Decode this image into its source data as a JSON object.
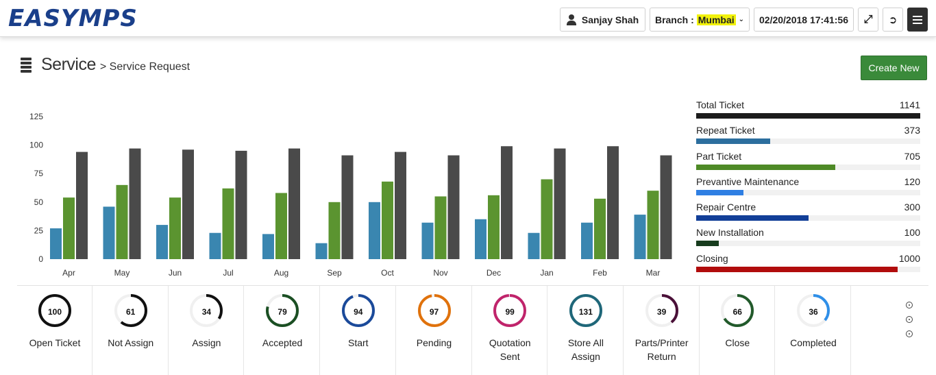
{
  "header": {
    "logo": "EASYMPS",
    "user": "Sanjay Shah",
    "branch_label": "Branch :",
    "branch_value": "Mumbai",
    "datetime": "02/20/2018 17:41:56"
  },
  "page": {
    "title": "Service",
    "breadcrumb": "> Service Request",
    "create_button": "Create New"
  },
  "chart_data": {
    "type": "bar",
    "categories": [
      "Apr",
      "May",
      "Jun",
      "Jul",
      "Aug",
      "Sep",
      "Oct",
      "Nov",
      "Dec",
      "Jan",
      "Feb",
      "Mar"
    ],
    "series": [
      {
        "color": "#3a86b0",
        "values": [
          27,
          46,
          30,
          23,
          22,
          14,
          50,
          32,
          35,
          23,
          32,
          39
        ]
      },
      {
        "color": "#5b9430",
        "values": [
          54,
          65,
          54,
          62,
          58,
          50,
          68,
          55,
          56,
          70,
          53,
          60
        ]
      },
      {
        "color": "#4a4a4a",
        "values": [
          94,
          97,
          96,
          95,
          97,
          91,
          94,
          91,
          99,
          97,
          99,
          91
        ]
      }
    ],
    "yticks": [
      0,
      25,
      50,
      75,
      100,
      125
    ],
    "ylim": [
      0,
      125
    ]
  },
  "tickets": [
    {
      "label": "Total Ticket",
      "value": "1141",
      "pct": 100,
      "color": "#1c1c1c"
    },
    {
      "label": "Repeat Ticket",
      "value": "373",
      "pct": 33,
      "color": "#2c6e9e"
    },
    {
      "label": "Part Ticket",
      "value": "705",
      "pct": 62,
      "color": "#4e8a26"
    },
    {
      "label": "Prevantive Maintenance",
      "value": "120",
      "pct": 21,
      "color": "#2f7fe3"
    },
    {
      "label": "Repair Centre",
      "value": "300",
      "pct": 50,
      "color": "#123f98"
    },
    {
      "label": "New Installation",
      "value": "100",
      "pct": 10,
      "color": "#173c1e"
    },
    {
      "label": "Closing",
      "value": "1000",
      "pct": 90,
      "color": "#b10c0c"
    }
  ],
  "statuses": [
    {
      "label": "Open Ticket",
      "value": "100",
      "pct": 100,
      "color": "#111111"
    },
    {
      "label": "Not Assign",
      "value": "61",
      "pct": 61,
      "color": "#111111"
    },
    {
      "label": "Assign",
      "value": "34",
      "pct": 34,
      "color": "#111111"
    },
    {
      "label": "Accepted",
      "value": "79",
      "pct": 79,
      "color": "#1b4f23"
    },
    {
      "label": "Start",
      "value": "94",
      "pct": 94,
      "color": "#1b4a9a"
    },
    {
      "label": "Pending",
      "value": "97",
      "pct": 97,
      "color": "#e0720c"
    },
    {
      "label": "Quotation Sent",
      "value": "99",
      "pct": 99,
      "color": "#c0246b"
    },
    {
      "label": "Store All Assign",
      "value": "131",
      "pct": 100,
      "color": "#1f6779"
    },
    {
      "label": "Parts/Printer Return",
      "value": "39",
      "pct": 39,
      "color": "#4a1038"
    },
    {
      "label": "Close",
      "value": "66",
      "pct": 66,
      "color": "#225a2b"
    },
    {
      "label": "Completed",
      "value": "36",
      "pct": 36,
      "color": "#2f8fe8"
    }
  ]
}
